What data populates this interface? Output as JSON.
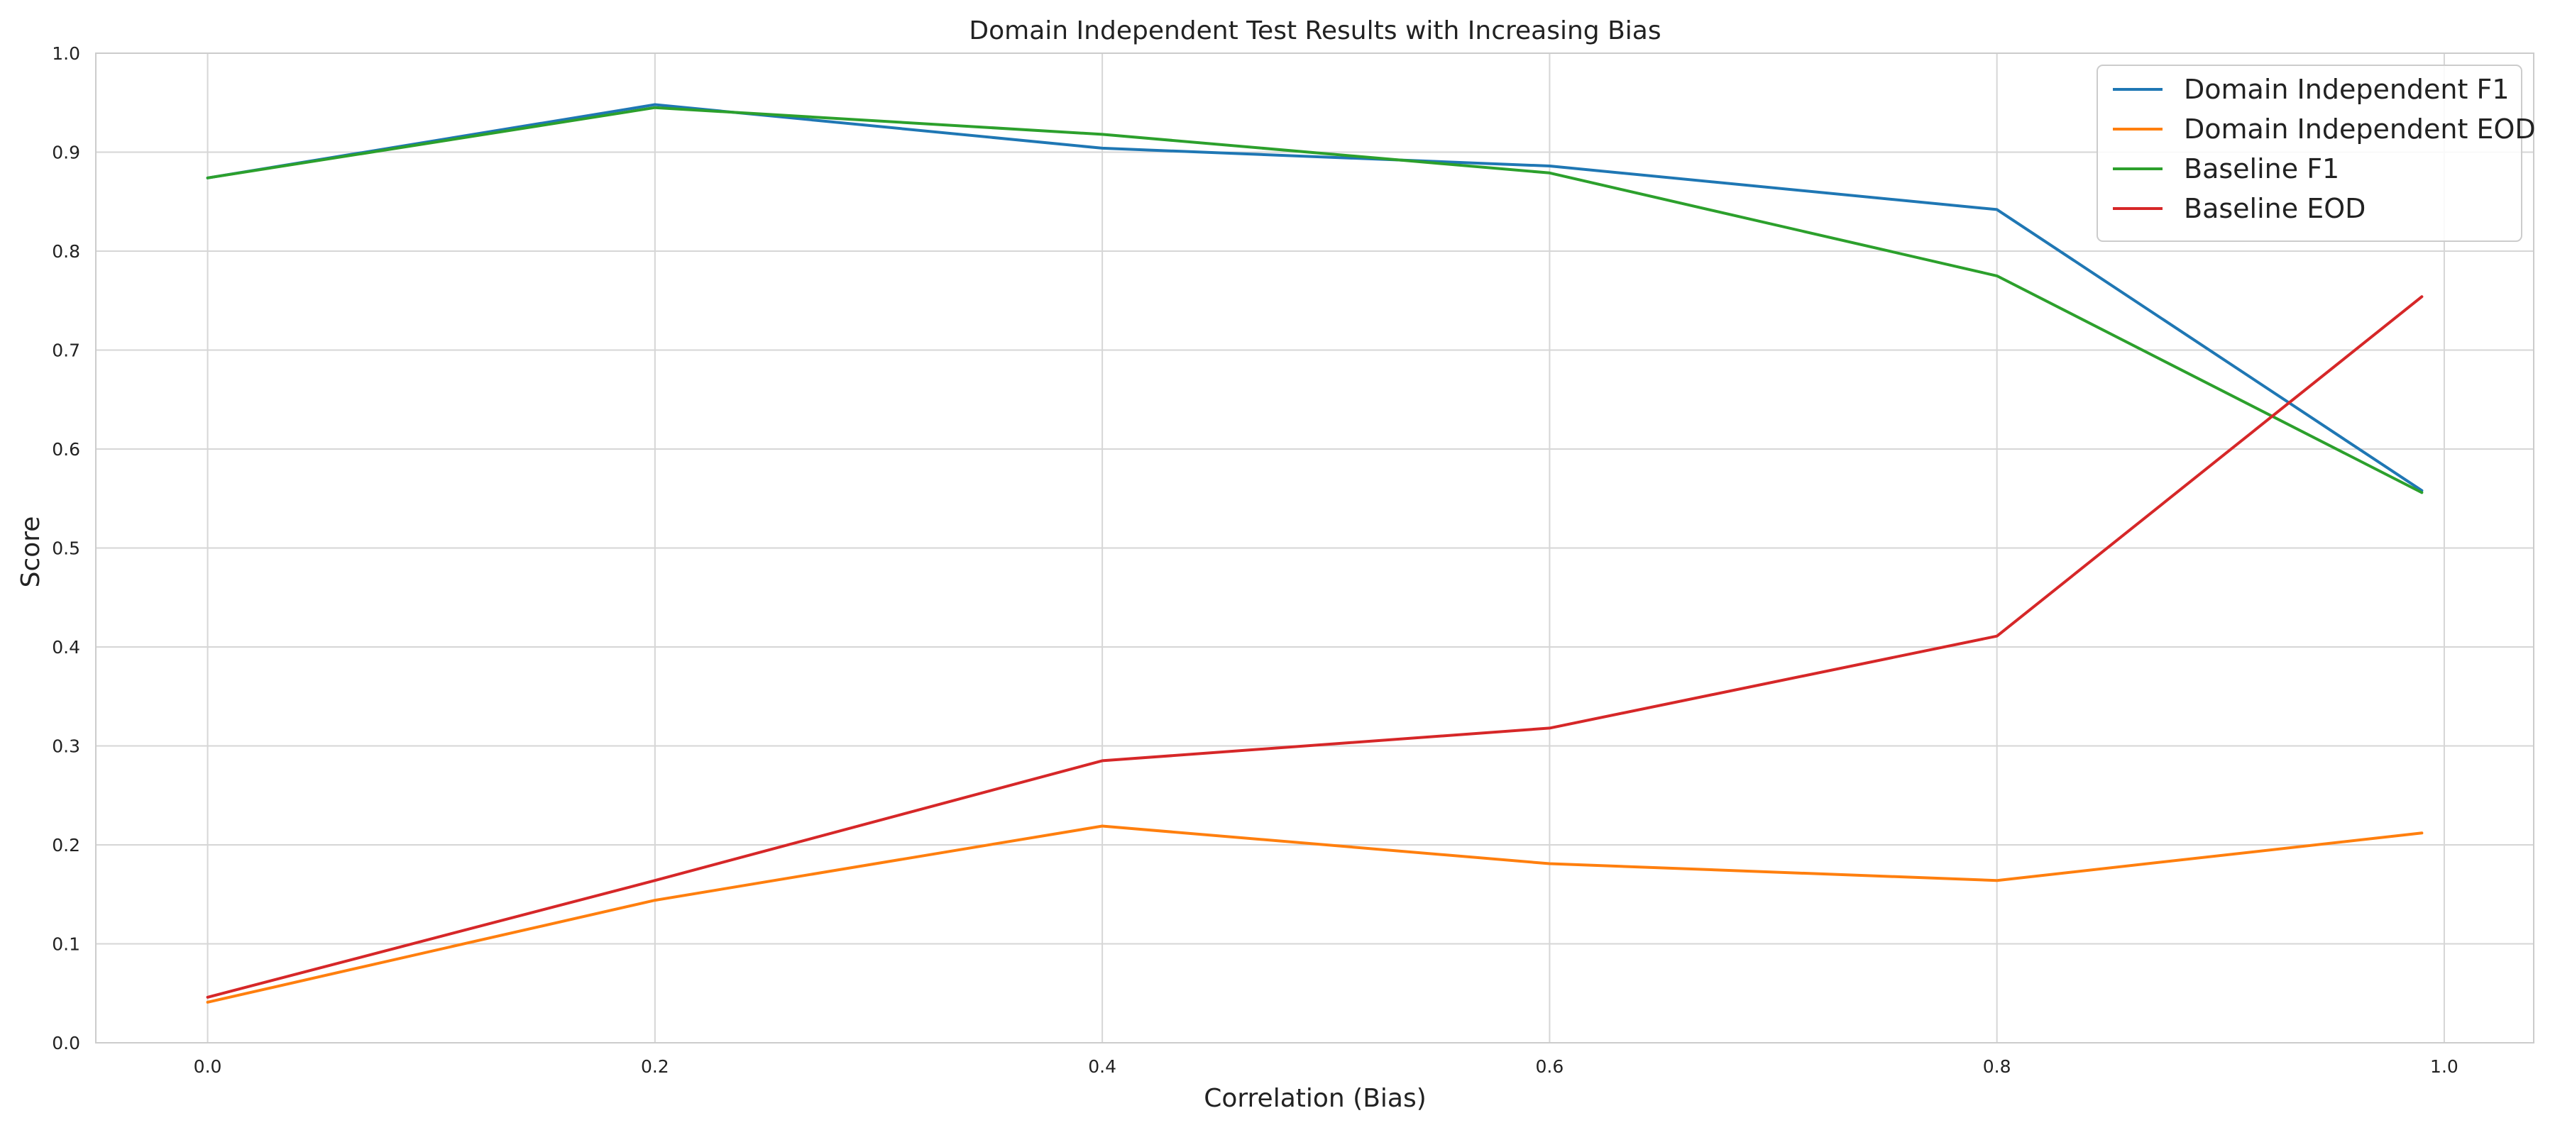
{
  "chart_data": {
    "type": "line",
    "title": "Domain Independent Test Results with Increasing Bias",
    "xlabel": "Correlation (Bias)",
    "ylabel": "Score",
    "x": [
      0.0,
      0.2,
      0.4,
      0.6,
      0.8,
      0.99
    ],
    "xlim": [
      -0.05,
      1.04
    ],
    "ylim": [
      0.0,
      1.0
    ],
    "xticks": [
      "0.0",
      "0.2",
      "0.4",
      "0.6",
      "0.8",
      "1.0"
    ],
    "yticks": [
      "0.0",
      "0.1",
      "0.2",
      "0.3",
      "0.4",
      "0.5",
      "0.6",
      "0.7",
      "0.8",
      "0.9",
      "1.0"
    ],
    "grid": true,
    "legend_position": "top-right",
    "series": [
      {
        "name": "Domain Independent F1",
        "color": "#1f77b4",
        "values": [
          0.874,
          0.948,
          0.904,
          0.886,
          0.842,
          0.558
        ]
      },
      {
        "name": "Domain Independent EOD",
        "color": "#ff7f0e",
        "values": [
          0.041,
          0.144,
          0.219,
          0.181,
          0.164,
          0.212
        ]
      },
      {
        "name": "Baseline F1",
        "color": "#2ca02c",
        "values": [
          0.874,
          0.945,
          0.918,
          0.879,
          0.775,
          0.556
        ]
      },
      {
        "name": "Baseline EOD",
        "color": "#d62728",
        "values": [
          0.046,
          0.164,
          0.285,
          0.318,
          0.411,
          0.754
        ]
      }
    ]
  }
}
